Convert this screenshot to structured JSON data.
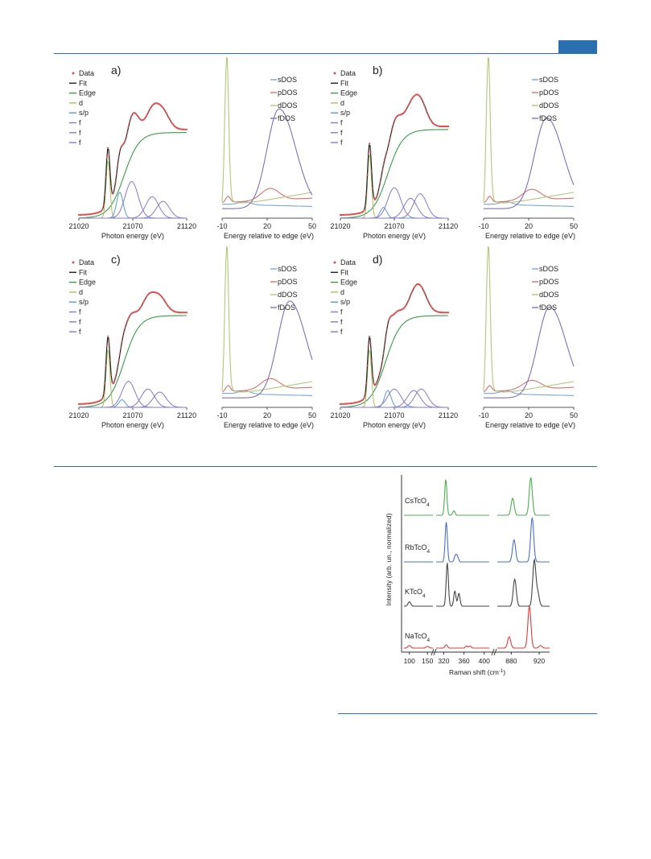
{
  "colors": {
    "header_rule": "#2a6fb0",
    "data": "#e05050",
    "fit": "#222222",
    "edge": "#3a9a4a",
    "d": "#a8c060",
    "sp": "#5a9ad0",
    "f": "#8878c8",
    "sDOS": "#7aa8d8",
    "pDOS": "#d87070",
    "dDOS": "#b0c878",
    "fDOS": "#8070b8",
    "raman_cs": "#4caf50",
    "raman_rb": "#4a6fd0",
    "raman_k": "#444444",
    "raman_na": "#e03c3c"
  },
  "panels": [
    {
      "label": "a)",
      "xanes_legend": [
        "Data",
        "Fit",
        "Edge",
        "d",
        "s/p",
        "f",
        "f",
        "f"
      ],
      "dos_legend": [
        "sDOS",
        "pDOS",
        "dDOS",
        "fDOS"
      ],
      "xanes_xlabel": "Photon energy (eV)",
      "xanes_ticks": [
        "21020",
        "21070",
        "21120"
      ],
      "dos_xlabel": "Energy relative to edge (eV)",
      "dos_ticks": [
        "-10",
        "20",
        "50"
      ],
      "chart_data": {
        "type": "line",
        "xanes": {
          "x_range": [
            21020,
            21120
          ],
          "white_line": 21047,
          "edge_center": 21062,
          "edge_step": 0.56,
          "max_peak": 21071,
          "d": {
            "center": 21047,
            "height": 0.38
          },
          "sp": {
            "center": 21058,
            "height": 0.17
          },
          "f": [
            {
              "center": 21069,
              "height": 0.24
            },
            {
              "center": 21088,
              "height": 0.14
            },
            {
              "center": 21098,
              "height": 0.11
            }
          ]
        },
        "dos": {
          "x_range": [
            -10,
            50
          ],
          "sDOS": {
            "level": 0.05
          },
          "pDOS": {
            "peak": -6,
            "broad": 22,
            "height": 0.13
          },
          "dDOS": {
            "peak": -7,
            "height": 0.98,
            "tail": 0.14
          },
          "fDOS": {
            "peak": 28,
            "height": 0.66
          }
        }
      }
    },
    {
      "label": "b)",
      "xanes_legend": [
        "Data",
        "Fit",
        "Edge",
        "d",
        "s/p",
        "f",
        "f",
        "f"
      ],
      "dos_legend": [
        "sDOS",
        "pDOS",
        "dDOS",
        "fDOS"
      ],
      "xanes_xlabel": "Photon energy (eV)",
      "xanes_ticks": [
        "21020",
        "21070",
        "21120"
      ],
      "dos_xlabel": "Energy relative to edge (eV)",
      "dos_ticks": [
        "-10",
        "20",
        "50"
      ],
      "chart_data": {
        "type": "line",
        "xanes": {
          "x_range": [
            21020,
            21120
          ],
          "white_line": 21047,
          "edge_center": 21064,
          "edge_step": 0.58,
          "max_peak": 21092,
          "d": {
            "center": 21047,
            "height": 0.42
          },
          "sp": {
            "center": 21060,
            "height": 0.07
          },
          "f": [
            {
              "center": 21070,
              "height": 0.2
            },
            {
              "center": 21085,
              "height": 0.13
            },
            {
              "center": 21094,
              "height": 0.16
            }
          ]
        },
        "dos": {
          "x_range": [
            -10,
            50
          ],
          "sDOS": {
            "level": 0.05
          },
          "pDOS": {
            "peak": -6,
            "broad": 22,
            "height": 0.12
          },
          "dDOS": {
            "peak": -7,
            "height": 0.98,
            "tail": 0.14
          },
          "fDOS": {
            "peak": 32,
            "height": 0.6
          }
        }
      }
    },
    {
      "label": "c)",
      "xanes_legend": [
        "Data",
        "Fit",
        "Edge",
        "d",
        "s/p",
        "f",
        "f",
        "f"
      ],
      "dos_legend": [
        "sDOS",
        "pDOS",
        "dDOS",
        "fDOS"
      ],
      "xanes_xlabel": "Photon energy (eV)",
      "xanes_ticks": [
        "21020",
        "21070",
        "21120"
      ],
      "dos_xlabel": "Energy relative to edge (eV)",
      "dos_ticks": [
        "-10",
        "20",
        "50"
      ],
      "chart_data": {
        "type": "line",
        "xanes": {
          "x_range": [
            21020,
            21120
          ],
          "white_line": 21047,
          "edge_center": 21062,
          "edge_step": 0.6,
          "max_peak": 21090,
          "d": {
            "center": 21047,
            "height": 0.38
          },
          "sp": {
            "center": 21060,
            "height": 0.05
          },
          "f": [
            {
              "center": 21066,
              "height": 0.17
            },
            {
              "center": 21084,
              "height": 0.12
            },
            {
              "center": 21095,
              "height": 0.1
            }
          ]
        },
        "dos": {
          "x_range": [
            -10,
            50
          ],
          "sDOS": {
            "level": 0.05
          },
          "pDOS": {
            "peak": -6,
            "broad": 22,
            "height": 0.12
          },
          "dDOS": {
            "peak": -7,
            "height": 0.98,
            "tail": 0.14
          },
          "fDOS": {
            "peak": 35,
            "height": 0.64
          }
        }
      }
    },
    {
      "label": "d)",
      "xanes_legend": [
        "Data",
        "Fit",
        "Edge",
        "d",
        "s/p",
        "f",
        "f",
        "f"
      ],
      "dos_legend": [
        "sDOS",
        "pDOS",
        "dDOS",
        "fDOS"
      ],
      "xanes_xlabel": "Photon energy (eV)",
      "xanes_ticks": [
        "21020",
        "21070",
        "21120"
      ],
      "dos_xlabel": "Energy relative to edge (eV)",
      "dos_ticks": [
        "-10",
        "20",
        "50"
      ],
      "chart_data": {
        "type": "line",
        "xanes": {
          "x_range": [
            21020,
            21120
          ],
          "white_line": 21047,
          "edge_center": 21062,
          "edge_step": 0.6,
          "max_peak": 21087,
          "d": {
            "center": 21047,
            "height": 0.38
          },
          "sp": {
            "center": 21064,
            "height": 0.11
          },
          "f": [
            {
              "center": 21070,
              "height": 0.12
            },
            {
              "center": 21088,
              "height": 0.11
            },
            {
              "center": 21095,
              "height": 0.12
            }
          ]
        },
        "dos": {
          "x_range": [
            -10,
            50
          ],
          "sDOS": {
            "level": 0.05
          },
          "pDOS": {
            "peak": -6,
            "broad": 22,
            "height": 0.1
          },
          "dDOS": {
            "peak": -7,
            "height": 0.98,
            "tail": 0.14
          },
          "fDOS": {
            "peak": 34,
            "height": 0.6
          }
        }
      }
    }
  ],
  "raman": {
    "ylabel": "Intensity (arb. un., normalized)",
    "xlabel_main": "Raman shift (cm",
    "xlabel_sup": "-1",
    "xlabel_end": ")",
    "tick_labels": [
      "100",
      "150",
      "320",
      "360",
      "400",
      "880",
      "920"
    ],
    "series": [
      {
        "name": "CsTcO",
        "sub": "4",
        "color_key": "raman_cs",
        "peaks": [
          {
            "x": 324,
            "h": 0.95
          },
          {
            "x": 340,
            "h": 0.12
          },
          {
            "x": 882,
            "h": 0.45
          },
          {
            "x": 908,
            "h": 1.0
          }
        ]
      },
      {
        "name": "RbTcO",
        "sub": "4",
        "color_key": "raman_rb",
        "peaks": [
          {
            "x": 325,
            "h": 0.9
          },
          {
            "x": 343,
            "h": 0.14
          },
          {
            "x": 347,
            "h": 0.12
          },
          {
            "x": 884,
            "h": 0.5
          },
          {
            "x": 910,
            "h": 1.0
          }
        ]
      },
      {
        "name": "KTcO",
        "sub": "4",
        "color_key": "raman_k",
        "peaks": [
          {
            "x": 100,
            "h": 0.1
          },
          {
            "x": 327,
            "h": 1.0
          },
          {
            "x": 342,
            "h": 0.35
          },
          {
            "x": 350,
            "h": 0.3
          },
          {
            "x": 885,
            "h": 0.62
          },
          {
            "x": 913,
            "h": 1.05
          },
          {
            "x": 918,
            "h": 0.3
          }
        ]
      },
      {
        "name": "NaTcO",
        "sub": "4",
        "color_key": "raman_na",
        "peaks": [
          {
            "x": 100,
            "h": 0.06
          },
          {
            "x": 150,
            "h": 0.04
          },
          {
            "x": 325,
            "h": 0.08
          },
          {
            "x": 365,
            "h": 0.05
          },
          {
            "x": 372,
            "h": 0.05
          },
          {
            "x": 877,
            "h": 0.27
          },
          {
            "x": 906,
            "h": 1.0
          },
          {
            "x": 922,
            "h": 0.06
          }
        ]
      }
    ]
  }
}
